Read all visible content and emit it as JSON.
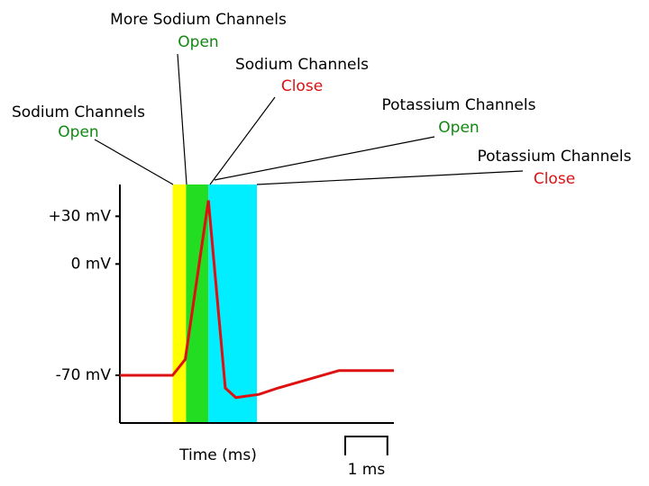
{
  "chart_data": {
    "type": "line",
    "x_label": "Time (ms)",
    "x": [
      0,
      1.25,
      1.55,
      2.1,
      2.5,
      2.75,
      3.3,
      3.75,
      5.2,
      6.5
    ],
    "series": [
      {
        "color": "#dd1111",
        "values": [
          -70,
          -70,
          -60,
          40,
          -78,
          -84,
          -82,
          -78,
          -67,
          -67
        ]
      }
    ],
    "xlim": [
      0,
      6.5
    ],
    "ylim": [
      -100,
      50
    ],
    "yticks": [
      {
        "value": 30,
        "label": "+30 mV"
      },
      {
        "value": 0,
        "label": "0 mV"
      },
      {
        "value": -70,
        "label": "-70 mV"
      }
    ],
    "phases": [
      {
        "start": 1.25,
        "end": 1.57,
        "color": "#ffff00"
      },
      {
        "start": 1.57,
        "end": 2.1,
        "color": "#22dd22"
      },
      {
        "start": 2.1,
        "end": 3.25,
        "color": "#00eeff"
      }
    ],
    "annotations": [
      {
        "text": "More Sodium Channels",
        "state": "Open",
        "state_color": "#118811"
      },
      {
        "text": "Sodium Channels",
        "state": "Close",
        "state_color": "#dd1111"
      },
      {
        "text": "Sodium Channels",
        "state": "Open",
        "state_color": "#118811"
      },
      {
        "text": "Potassium Channels",
        "state": "Open",
        "state_color": "#118811"
      },
      {
        "text": "Potassium Channels",
        "state": "Close",
        "state_color": "#dd1111"
      }
    ],
    "scale_bar": {
      "value": 1,
      "label": "1 ms"
    }
  }
}
